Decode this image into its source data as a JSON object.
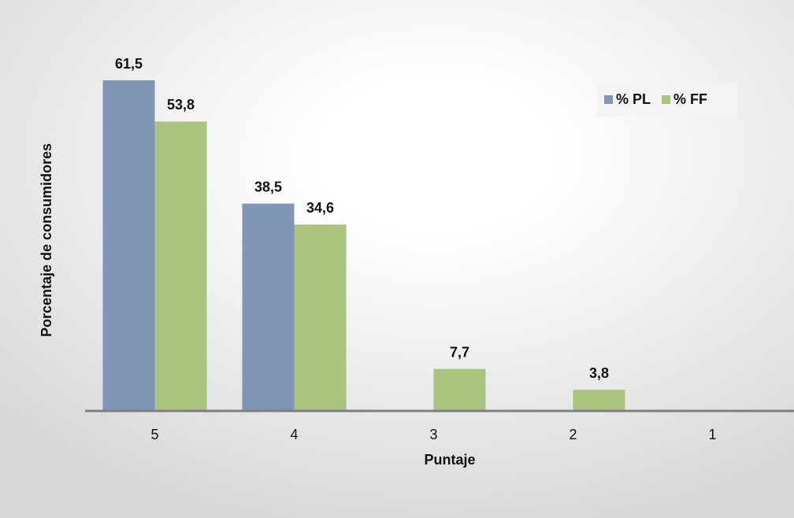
{
  "chart_data": {
    "type": "bar",
    "x_label": "Puntaje",
    "y_label": "Porcentaje de consumidores",
    "categories": [
      "5",
      "4",
      "3",
      "2",
      "1"
    ],
    "series": [
      {
        "name": "% PL",
        "color": "#7f96b6",
        "values": [
          61.5,
          38.5,
          null,
          null,
          null
        ],
        "value_labels": [
          "61,5",
          "38,5",
          null,
          null,
          null
        ]
      },
      {
        "name": "% FF",
        "color": "#a9c47f",
        "values": [
          53.8,
          34.6,
          7.7,
          3.8,
          null
        ],
        "value_labels": [
          "53,8",
          "34,6",
          "7,7",
          "3,8",
          null
        ]
      }
    ],
    "legend": "upper right"
  }
}
